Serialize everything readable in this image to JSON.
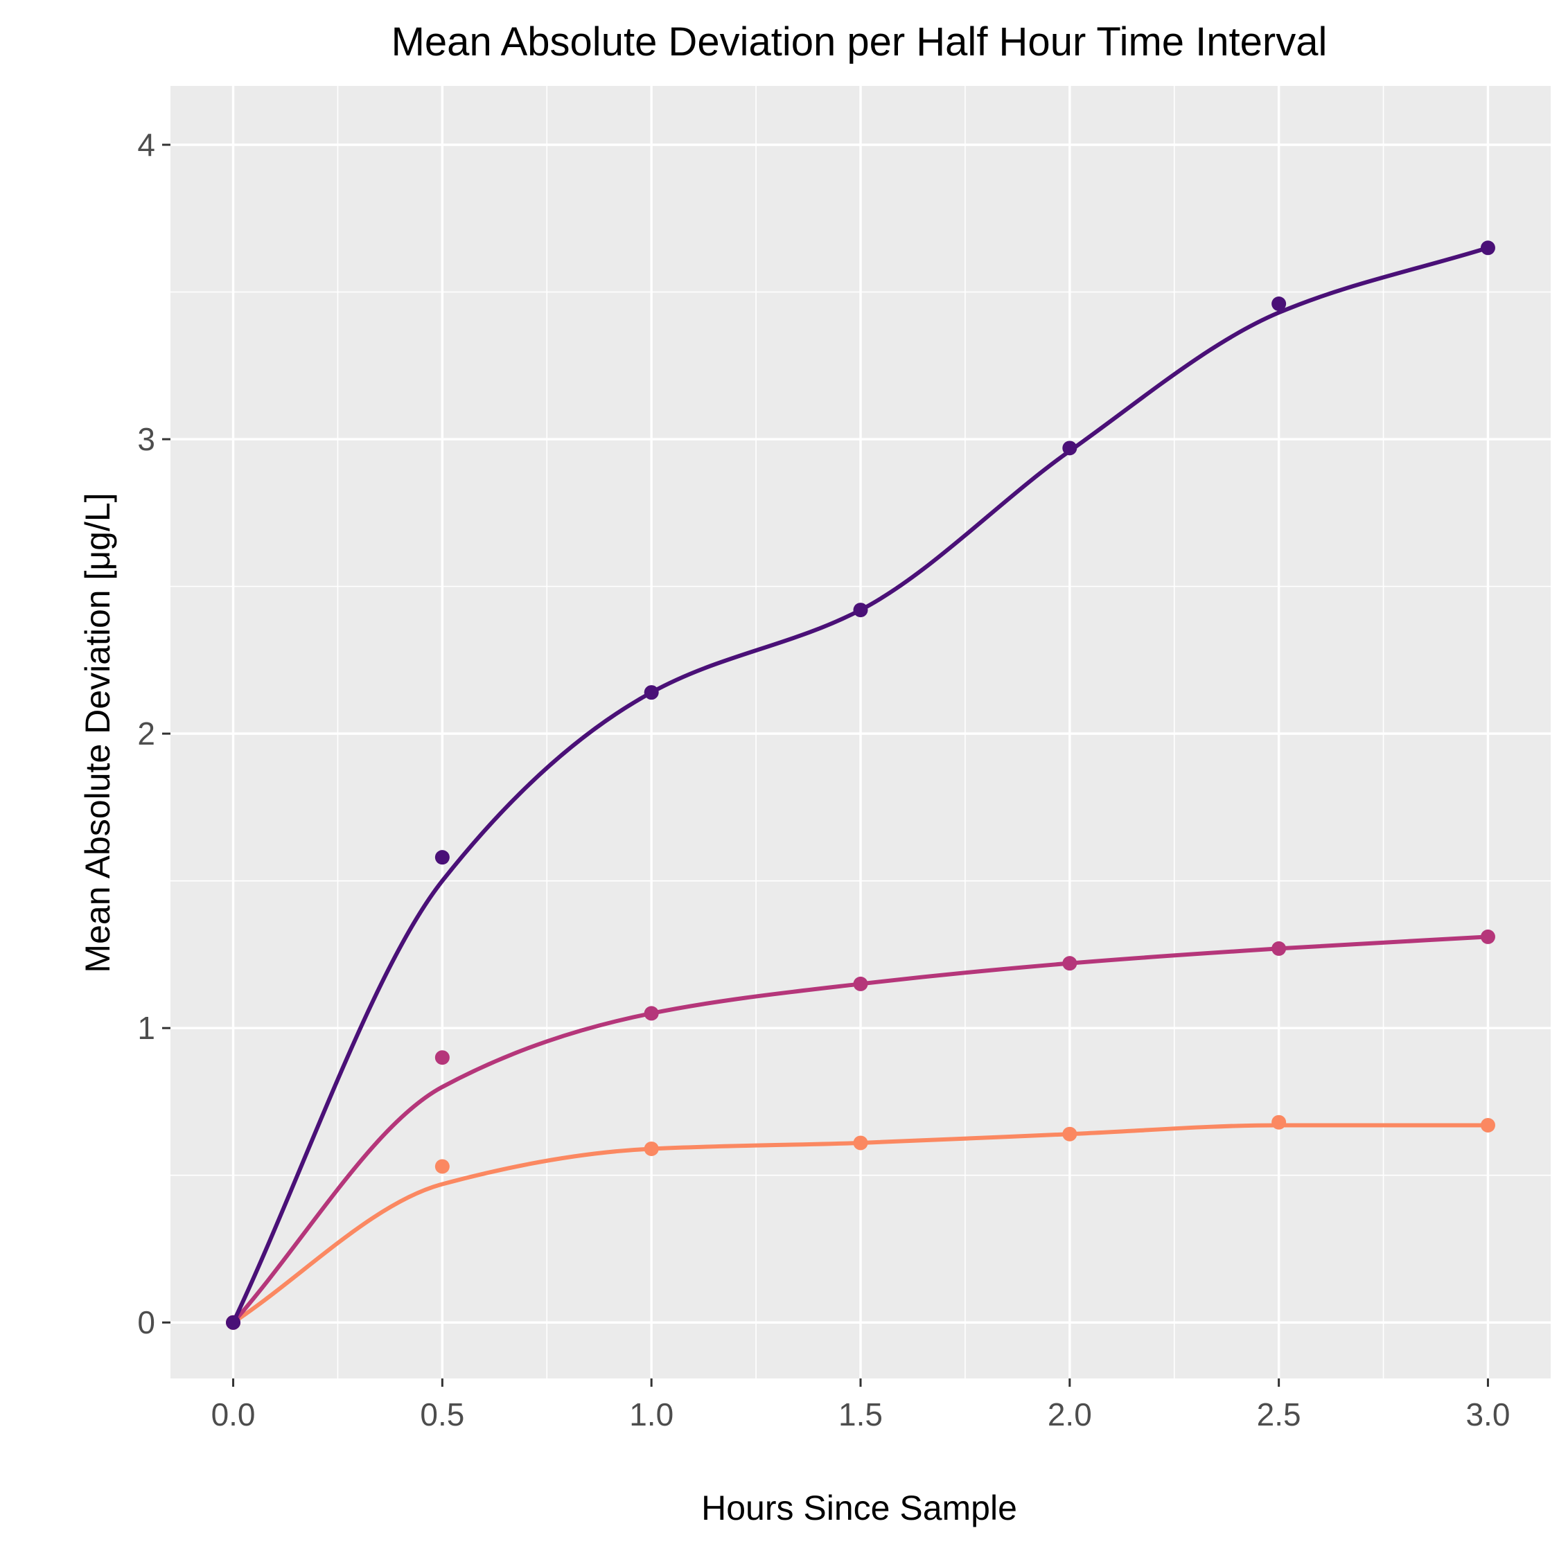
{
  "chart_data": {
    "type": "line",
    "title": "Mean Absolute Deviation per Half Hour Time Interval",
    "xlabel": "Hours Since Sample",
    "ylabel": "Mean Absolute Deviation [μg/L]",
    "x_ticks": [
      "0.0",
      "0.5",
      "1.0",
      "1.5",
      "2.0",
      "2.5",
      "3.0"
    ],
    "y_ticks": [
      "0",
      "1",
      "2",
      "3",
      "4"
    ],
    "xlim": [
      -0.15,
      3.15
    ],
    "ylim": [
      -0.19,
      4.2
    ],
    "grid": true,
    "background": "#ebebeb",
    "grid_color": "#ffffff",
    "legend": "none",
    "x": [
      0.0,
      0.5,
      1.0,
      1.5,
      2.0,
      2.5,
      3.0
    ],
    "series": [
      {
        "color": "#4a1077",
        "values": [
          0.0,
          1.58,
          2.14,
          2.42,
          2.97,
          3.46,
          3.65
        ],
        "fit": [
          0.0,
          1.5,
          2.14,
          2.42,
          2.96,
          3.43,
          3.65
        ]
      },
      {
        "color": "#b5367a",
        "values": [
          0.0,
          0.9,
          1.05,
          1.15,
          1.22,
          1.27,
          1.31
        ],
        "fit": [
          0.0,
          0.8,
          1.05,
          1.15,
          1.22,
          1.27,
          1.31
        ]
      },
      {
        "color": "#fb8861",
        "values": [
          0.0,
          0.53,
          0.59,
          0.61,
          0.64,
          0.68,
          0.67
        ],
        "fit": [
          0.0,
          0.47,
          0.59,
          0.61,
          0.64,
          0.67,
          0.67
        ]
      }
    ]
  }
}
